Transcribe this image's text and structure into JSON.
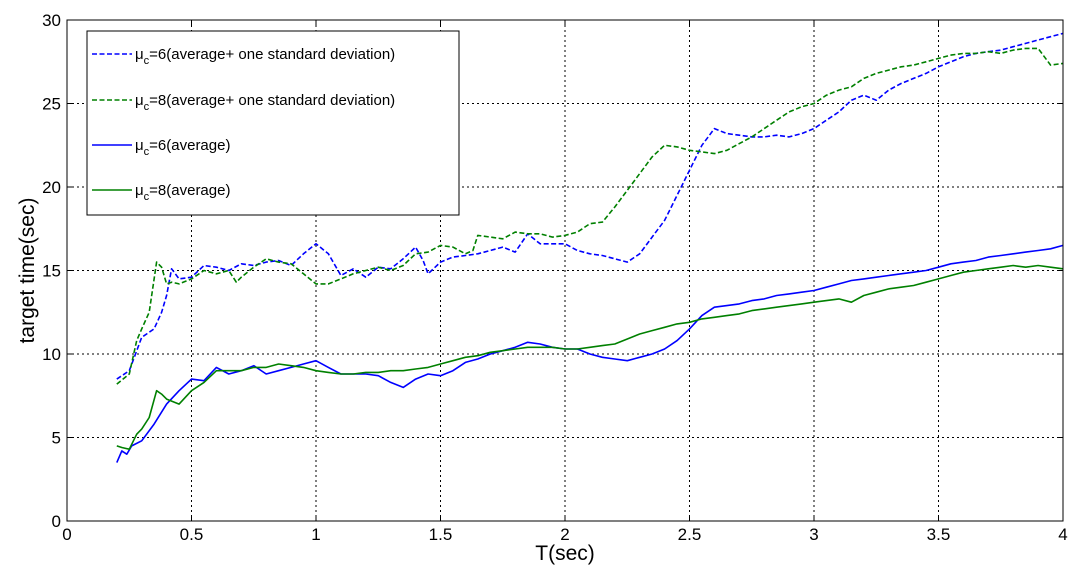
{
  "chart_data": {
    "type": "line",
    "title": "",
    "xlabel": "T(sec)",
    "ylabel": "target time(sec)",
    "xlim": [
      0,
      4
    ],
    "ylim": [
      0,
      30
    ],
    "xticks": [
      0,
      0.5,
      1,
      1.5,
      2,
      2.5,
      3,
      3.5,
      4
    ],
    "xtick_labels": [
      "0",
      "0.5",
      "1",
      "1.5",
      "2",
      "2.5",
      "3",
      "3.5",
      "4"
    ],
    "yticks": [
      0,
      5,
      10,
      15,
      20,
      25,
      30
    ],
    "ytick_labels": [
      "0",
      "5",
      "10",
      "15",
      "20",
      "25",
      "30"
    ],
    "grid": true,
    "legend_position": "top-left",
    "series": [
      {
        "name": "μc=6(average+ one standard deviation)",
        "legend_main": "μ",
        "legend_sub": "c",
        "legend_rest": "=6(average+ one standard deviation)",
        "color": "#0000ff",
        "style": "dashed",
        "x": [
          0.2,
          0.25,
          0.3,
          0.35,
          0.38,
          0.4,
          0.42,
          0.45,
          0.5,
          0.55,
          0.6,
          0.65,
          0.7,
          0.75,
          0.8,
          0.85,
          0.9,
          0.95,
          1.0,
          1.05,
          1.1,
          1.15,
          1.2,
          1.25,
          1.3,
          1.35,
          1.4,
          1.43,
          1.45,
          1.5,
          1.55,
          1.6,
          1.65,
          1.7,
          1.75,
          1.8,
          1.85,
          1.9,
          1.95,
          2.0,
          2.05,
          2.1,
          2.15,
          2.2,
          2.25,
          2.3,
          2.35,
          2.4,
          2.45,
          2.5,
          2.55,
          2.6,
          2.65,
          2.7,
          2.75,
          2.8,
          2.85,
          2.9,
          2.95,
          3.0,
          3.05,
          3.1,
          3.15,
          3.2,
          3.25,
          3.3,
          3.35,
          3.4,
          3.45,
          3.5,
          3.55,
          3.6,
          3.65,
          3.7,
          3.75,
          3.8,
          3.85,
          3.9,
          3.95,
          4.0
        ],
        "values": [
          8.5,
          9.0,
          11.0,
          11.5,
          12.5,
          13.5,
          15.1,
          14.5,
          14.6,
          15.3,
          15.2,
          15.0,
          15.4,
          15.3,
          15.5,
          15.6,
          15.3,
          16.0,
          16.6,
          16.0,
          14.7,
          15.1,
          14.6,
          15.2,
          15.1,
          15.7,
          16.4,
          15.6,
          14.8,
          15.5,
          15.8,
          15.9,
          16.0,
          16.2,
          16.4,
          16.1,
          17.2,
          16.6,
          16.6,
          16.6,
          16.2,
          16.0,
          15.9,
          15.7,
          15.5,
          16.0,
          17.0,
          18.0,
          19.5,
          21.0,
          22.5,
          23.5,
          23.2,
          23.1,
          23.0,
          23.0,
          23.1,
          23.0,
          23.2,
          23.5,
          24.0,
          24.5,
          25.2,
          25.5,
          25.2,
          25.8,
          26.2,
          26.5,
          26.8,
          27.2,
          27.5,
          27.8,
          28.0,
          28.1,
          28.2,
          28.4,
          28.6,
          28.8,
          29.0,
          29.2
        ]
      },
      {
        "name": "μc=8(average+ one standard deviation)",
        "legend_main": "μ",
        "legend_sub": "c",
        "legend_rest": "=8(average+ one standard deviation)",
        "color": "#008000",
        "style": "dashed",
        "x": [
          0.2,
          0.25,
          0.28,
          0.3,
          0.33,
          0.36,
          0.38,
          0.4,
          0.42,
          0.45,
          0.5,
          0.55,
          0.6,
          0.65,
          0.68,
          0.7,
          0.75,
          0.8,
          0.85,
          0.9,
          0.95,
          1.0,
          1.05,
          1.1,
          1.15,
          1.2,
          1.25,
          1.3,
          1.35,
          1.4,
          1.45,
          1.5,
          1.55,
          1.6,
          1.63,
          1.65,
          1.7,
          1.75,
          1.8,
          1.85,
          1.9,
          1.95,
          2.0,
          2.05,
          2.1,
          2.15,
          2.2,
          2.25,
          2.3,
          2.35,
          2.4,
          2.45,
          2.5,
          2.55,
          2.6,
          2.65,
          2.7,
          2.75,
          2.8,
          2.85,
          2.9,
          2.95,
          3.0,
          3.05,
          3.1,
          3.15,
          3.2,
          3.25,
          3.3,
          3.35,
          3.4,
          3.45,
          3.5,
          3.55,
          3.6,
          3.65,
          3.7,
          3.75,
          3.8,
          3.85,
          3.9,
          3.95,
          4.0
        ],
        "values": [
          8.2,
          8.8,
          10.8,
          11.5,
          12.5,
          15.5,
          15.2,
          14.2,
          14.3,
          14.2,
          14.5,
          15.0,
          14.8,
          15.0,
          14.3,
          14.6,
          15.2,
          15.7,
          15.5,
          15.4,
          14.8,
          14.2,
          14.2,
          14.5,
          14.8,
          15.0,
          15.2,
          15.0,
          15.3,
          16.0,
          16.1,
          16.5,
          16.4,
          16.0,
          16.2,
          17.1,
          17.0,
          16.9,
          17.3,
          17.2,
          17.2,
          17.0,
          17.1,
          17.3,
          17.8,
          17.9,
          18.8,
          19.8,
          20.8,
          21.8,
          22.5,
          22.4,
          22.2,
          22.1,
          22.0,
          22.2,
          22.6,
          23.0,
          23.5,
          24.0,
          24.5,
          24.8,
          25.0,
          25.5,
          25.8,
          26.0,
          26.5,
          26.8,
          27.0,
          27.2,
          27.3,
          27.5,
          27.7,
          27.9,
          28.0,
          28.0,
          28.1,
          28.0,
          28.2,
          28.3,
          28.3,
          27.3,
          27.4
        ]
      },
      {
        "name": "μc=6(average)",
        "legend_main": "μ",
        "legend_sub": "c",
        "legend_rest": "=6(average)",
        "color": "#0000ff",
        "style": "solid",
        "x": [
          0.2,
          0.22,
          0.24,
          0.26,
          0.3,
          0.35,
          0.4,
          0.45,
          0.5,
          0.55,
          0.6,
          0.65,
          0.7,
          0.75,
          0.8,
          0.85,
          0.9,
          0.95,
          1.0,
          1.05,
          1.1,
          1.15,
          1.2,
          1.25,
          1.3,
          1.35,
          1.4,
          1.45,
          1.5,
          1.55,
          1.6,
          1.65,
          1.7,
          1.75,
          1.8,
          1.85,
          1.9,
          1.95,
          2.0,
          2.05,
          2.1,
          2.15,
          2.2,
          2.25,
          2.3,
          2.35,
          2.4,
          2.45,
          2.5,
          2.55,
          2.6,
          2.65,
          2.7,
          2.75,
          2.8,
          2.85,
          2.9,
          2.95,
          3.0,
          3.05,
          3.1,
          3.15,
          3.2,
          3.25,
          3.3,
          3.35,
          3.4,
          3.45,
          3.5,
          3.55,
          3.6,
          3.65,
          3.7,
          3.75,
          3.8,
          3.85,
          3.9,
          3.95,
          4.0
        ],
        "values": [
          3.5,
          4.2,
          4.0,
          4.5,
          4.8,
          5.8,
          7.0,
          7.8,
          8.5,
          8.4,
          9.2,
          8.8,
          9.0,
          9.3,
          8.8,
          9.0,
          9.2,
          9.4,
          9.6,
          9.2,
          8.8,
          8.8,
          8.8,
          8.7,
          8.3,
          8.0,
          8.5,
          8.8,
          8.7,
          9.0,
          9.5,
          9.7,
          10.0,
          10.2,
          10.4,
          10.7,
          10.6,
          10.4,
          10.3,
          10.3,
          10.0,
          9.8,
          9.7,
          9.6,
          9.8,
          10.0,
          10.3,
          10.8,
          11.5,
          12.3,
          12.8,
          12.9,
          13.0,
          13.2,
          13.3,
          13.5,
          13.6,
          13.7,
          13.8,
          14.0,
          14.2,
          14.4,
          14.5,
          14.6,
          14.7,
          14.8,
          14.9,
          15.0,
          15.2,
          15.4,
          15.5,
          15.6,
          15.8,
          15.9,
          16.0,
          16.1,
          16.2,
          16.3,
          16.5
        ]
      },
      {
        "name": "μc=8(average)",
        "legend_main": "μ",
        "legend_sub": "c",
        "legend_rest": "=8(average)",
        "color": "#008000",
        "style": "solid",
        "x": [
          0.2,
          0.22,
          0.25,
          0.28,
          0.3,
          0.33,
          0.36,
          0.38,
          0.4,
          0.45,
          0.5,
          0.55,
          0.6,
          0.65,
          0.7,
          0.75,
          0.8,
          0.85,
          0.9,
          0.95,
          1.0,
          1.05,
          1.1,
          1.15,
          1.2,
          1.25,
          1.3,
          1.35,
          1.4,
          1.45,
          1.5,
          1.55,
          1.6,
          1.65,
          1.7,
          1.75,
          1.8,
          1.85,
          1.9,
          1.95,
          2.0,
          2.05,
          2.1,
          2.15,
          2.2,
          2.25,
          2.3,
          2.35,
          2.4,
          2.45,
          2.5,
          2.55,
          2.6,
          2.65,
          2.7,
          2.75,
          2.8,
          2.85,
          2.9,
          2.95,
          3.0,
          3.05,
          3.1,
          3.15,
          3.2,
          3.25,
          3.3,
          3.35,
          3.4,
          3.45,
          3.5,
          3.55,
          3.6,
          3.65,
          3.7,
          3.75,
          3.8,
          3.85,
          3.9,
          3.95,
          4.0
        ],
        "values": [
          4.5,
          4.4,
          4.3,
          5.2,
          5.5,
          6.2,
          7.8,
          7.6,
          7.3,
          7.0,
          7.8,
          8.3,
          9.0,
          9.0,
          9.0,
          9.2,
          9.2,
          9.4,
          9.3,
          9.2,
          9.0,
          8.9,
          8.8,
          8.8,
          8.9,
          8.9,
          9.0,
          9.0,
          9.1,
          9.2,
          9.4,
          9.6,
          9.8,
          9.9,
          10.1,
          10.2,
          10.3,
          10.4,
          10.4,
          10.4,
          10.3,
          10.3,
          10.4,
          10.5,
          10.6,
          10.9,
          11.2,
          11.4,
          11.6,
          11.8,
          11.9,
          12.1,
          12.2,
          12.3,
          12.4,
          12.6,
          12.7,
          12.8,
          12.9,
          13.0,
          13.1,
          13.2,
          13.3,
          13.1,
          13.5,
          13.7,
          13.9,
          14.0,
          14.1,
          14.3,
          14.5,
          14.7,
          14.9,
          15.0,
          15.1,
          15.2,
          15.3,
          15.2,
          15.3,
          15.2,
          15.1
        ]
      }
    ]
  }
}
